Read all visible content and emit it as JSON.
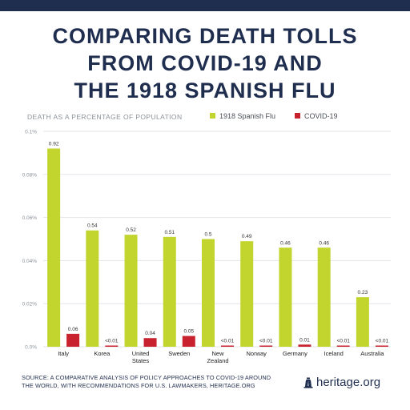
{
  "header": {
    "title_lines": [
      "COMPARING DEATH TOLLS",
      "FROM COVID-19 AND",
      "THE 1918 SPANISH FLU"
    ]
  },
  "chart_data": {
    "type": "bar",
    "ylabel": "DEATH AS A PERCENTAGE OF POPULATION",
    "ylim": [
      0,
      0.1
    ],
    "yticks": [
      "0.0%",
      "0.02%",
      "0.04%",
      "0.06%",
      "0.08%",
      "0.1%"
    ],
    "grid": true,
    "legend_position": "top-right",
    "categories": [
      "Italy",
      "Korea",
      "United States",
      "Sweden",
      "New Zealand",
      "Norway",
      "Germany",
      "Iceland",
      "Australia"
    ],
    "category_lines": [
      [
        "Italy"
      ],
      [
        "Korea"
      ],
      [
        "United",
        "States"
      ],
      [
        "Sweden"
      ],
      [
        "New",
        "Zealand"
      ],
      [
        "Norway"
      ],
      [
        "Germany"
      ],
      [
        "Iceland"
      ],
      [
        "Australia"
      ]
    ],
    "series": [
      {
        "name": "1918 Spanish Flu",
        "color": "#c2d52e",
        "values": [
          0.092,
          0.054,
          0.052,
          0.051,
          0.05,
          0.049,
          0.046,
          0.046,
          0.023
        ],
        "labels": [
          "0.92",
          "0.54",
          "0.52",
          "0.51",
          "0.5",
          "0.49",
          "0.46",
          "0.46",
          "0.23"
        ]
      },
      {
        "name": "COVID-19",
        "color": "#c8222e",
        "values": [
          0.006,
          0.0005,
          0.004,
          0.005,
          0.0005,
          0.0005,
          0.001,
          0.0005,
          0.0005
        ],
        "labels": [
          "0.06",
          "<0.01",
          "0.04",
          "0.05",
          "<0.01",
          "<0.01",
          "0.01",
          "<0.01",
          "<0.01"
        ]
      }
    ]
  },
  "footer": {
    "source_line1": "SOURCE: A COMPARATIVE ANALYSIS OF POLICY APPROACHES TO COVID-19 AROUND",
    "source_line2": "THE WORLD, WITH RECOMMENDATIONS FOR U.S. LAWMAKERS, HERITAGE.ORG",
    "logo_text": "heritage.org",
    "logo_icon": "bell-icon"
  },
  "colors": {
    "brand_navy": "#1f2d4e",
    "grid": "#e3e6ea"
  }
}
